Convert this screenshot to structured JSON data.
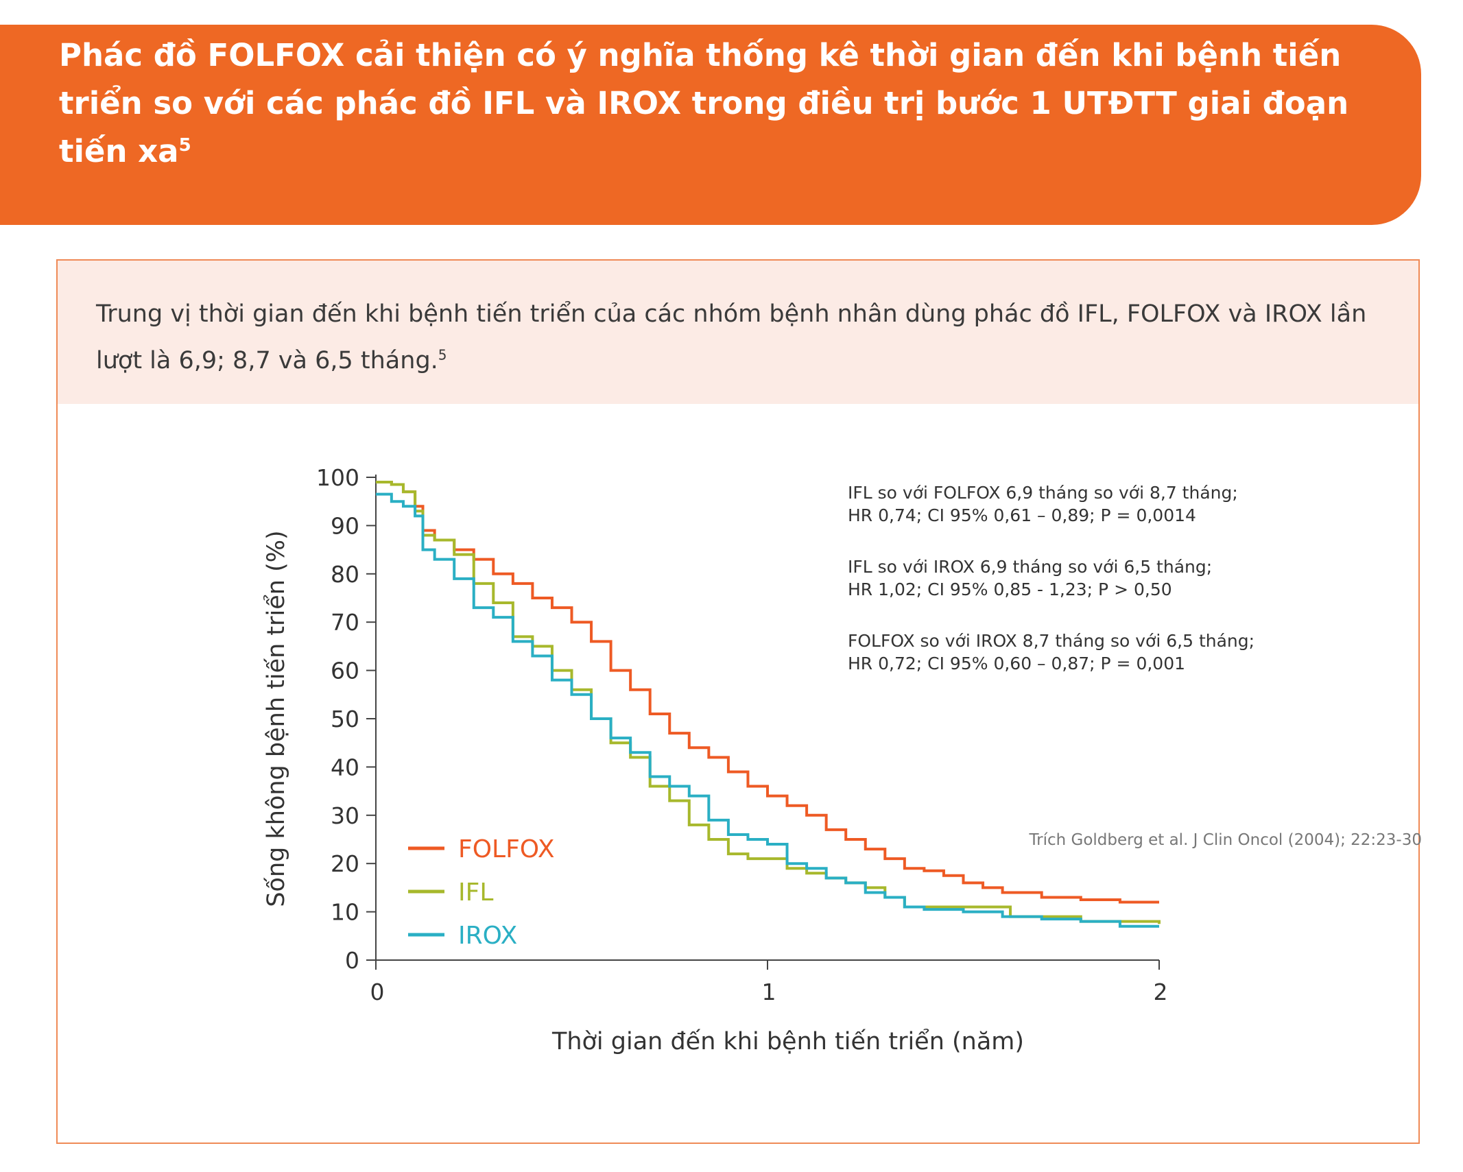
{
  "header": {
    "title": "Phác đồ FOLFOX cải thiện có ý nghĩa thống kê thời gian đến khi bệnh tiến triển so với các phác đồ IFL và IROX trong điều trị bước 1 UTĐTT giai đoạn tiến xa",
    "title_ref": "5",
    "background_color": "#ee6824"
  },
  "summary": {
    "text": "Trung vị thời gian đến khi bệnh tiến triển của các nhóm bệnh nhân dùng phác đồ IFL, FOLFOX và IROX lần lượt là 6,9; 8,7 và 6,5 tháng.",
    "ref": "5"
  },
  "chart_data": {
    "type": "line",
    "xlabel": "Thời gian đến khi bệnh tiến triển (năm)",
    "ylabel": "Sống không bệnh tiến triển (%)",
    "xlim": [
      0,
      2
    ],
    "ylim": [
      0,
      100
    ],
    "x_ticks": [
      0,
      1,
      2
    ],
    "y_ticks": [
      0,
      10,
      20,
      30,
      40,
      50,
      60,
      70,
      80,
      90,
      100
    ],
    "grid": false,
    "legend_position": "bottom-left",
    "series": [
      {
        "name": "FOLFOX",
        "color": "#ee5a24",
        "points": [
          [
            0,
            99
          ],
          [
            0.04,
            98.5
          ],
          [
            0.07,
            97
          ],
          [
            0.1,
            94
          ],
          [
            0.12,
            89
          ],
          [
            0.15,
            87
          ],
          [
            0.2,
            85
          ],
          [
            0.25,
            83
          ],
          [
            0.3,
            80
          ],
          [
            0.35,
            78
          ],
          [
            0.4,
            75
          ],
          [
            0.45,
            73
          ],
          [
            0.5,
            70
          ],
          [
            0.55,
            66
          ],
          [
            0.6,
            60
          ],
          [
            0.65,
            56
          ],
          [
            0.7,
            51
          ],
          [
            0.75,
            47
          ],
          [
            0.8,
            44
          ],
          [
            0.85,
            42
          ],
          [
            0.9,
            39
          ],
          [
            0.95,
            36
          ],
          [
            1.0,
            34
          ],
          [
            1.05,
            32
          ],
          [
            1.1,
            30
          ],
          [
            1.15,
            27
          ],
          [
            1.2,
            25
          ],
          [
            1.25,
            23
          ],
          [
            1.3,
            21
          ],
          [
            1.35,
            19
          ],
          [
            1.4,
            18.5
          ],
          [
            1.45,
            17.5
          ],
          [
            1.5,
            16
          ],
          [
            1.55,
            15
          ],
          [
            1.6,
            14
          ],
          [
            1.7,
            13
          ],
          [
            1.8,
            12.5
          ],
          [
            1.9,
            12
          ],
          [
            2.0,
            12
          ]
        ]
      },
      {
        "name": "IFL",
        "color": "#a7b82c",
        "points": [
          [
            0,
            99
          ],
          [
            0.04,
            98.5
          ],
          [
            0.07,
            97
          ],
          [
            0.1,
            93
          ],
          [
            0.12,
            88
          ],
          [
            0.15,
            87
          ],
          [
            0.2,
            84
          ],
          [
            0.25,
            78
          ],
          [
            0.3,
            74
          ],
          [
            0.35,
            67
          ],
          [
            0.4,
            65
          ],
          [
            0.45,
            60
          ],
          [
            0.5,
            56
          ],
          [
            0.55,
            50
          ],
          [
            0.6,
            45
          ],
          [
            0.65,
            42
          ],
          [
            0.7,
            36
          ],
          [
            0.75,
            33
          ],
          [
            0.8,
            28
          ],
          [
            0.85,
            25
          ],
          [
            0.9,
            22
          ],
          [
            0.95,
            21
          ],
          [
            1.0,
            21
          ],
          [
            1.05,
            19
          ],
          [
            1.1,
            18
          ],
          [
            1.15,
            17
          ],
          [
            1.2,
            16
          ],
          [
            1.25,
            15
          ],
          [
            1.3,
            13
          ],
          [
            1.35,
            11
          ],
          [
            1.4,
            11
          ],
          [
            1.5,
            11
          ],
          [
            1.6,
            11
          ],
          [
            1.62,
            9
          ],
          [
            1.7,
            9
          ],
          [
            1.8,
            8
          ],
          [
            1.9,
            8
          ],
          [
            2.0,
            7.5
          ]
        ]
      },
      {
        "name": "IROX",
        "color": "#2aafc4",
        "points": [
          [
            0,
            96.5
          ],
          [
            0.04,
            95
          ],
          [
            0.07,
            94
          ],
          [
            0.1,
            92
          ],
          [
            0.12,
            85
          ],
          [
            0.15,
            83
          ],
          [
            0.2,
            79
          ],
          [
            0.25,
            73
          ],
          [
            0.3,
            71
          ],
          [
            0.35,
            66
          ],
          [
            0.4,
            63
          ],
          [
            0.45,
            58
          ],
          [
            0.5,
            55
          ],
          [
            0.55,
            50
          ],
          [
            0.6,
            46
          ],
          [
            0.65,
            43
          ],
          [
            0.7,
            38
          ],
          [
            0.75,
            36
          ],
          [
            0.8,
            34
          ],
          [
            0.85,
            29
          ],
          [
            0.9,
            26
          ],
          [
            0.95,
            25
          ],
          [
            1.0,
            24
          ],
          [
            1.05,
            20
          ],
          [
            1.1,
            19
          ],
          [
            1.15,
            17
          ],
          [
            1.2,
            16
          ],
          [
            1.25,
            14
          ],
          [
            1.3,
            13
          ],
          [
            1.35,
            11
          ],
          [
            1.4,
            10.5
          ],
          [
            1.5,
            10
          ],
          [
            1.6,
            9
          ],
          [
            1.7,
            8.5
          ],
          [
            1.8,
            8
          ],
          [
            1.9,
            7
          ],
          [
            2.0,
            7
          ]
        ]
      }
    ],
    "annotations": [
      [
        "IFL so với FOLFOX  6,9 tháng so với 8,7 tháng;",
        "HR 0,74; CI 95% 0,61 – 0,89; P = 0,0014"
      ],
      [
        "IFL so với IROX 6,9 tháng so với 6,5 tháng;",
        "HR 1,02; CI 95% 0,85 - 1,23; P > 0,50"
      ],
      [
        "FOLFOX so với IROX 8,7 tháng so với 6,5 tháng;",
        "HR 0,72; CI 95% 0,60 – 0,87; P = 0,001"
      ]
    ]
  },
  "source": "Trích Goldberg et al. J Clin Oncol (2004); 22:23-30"
}
